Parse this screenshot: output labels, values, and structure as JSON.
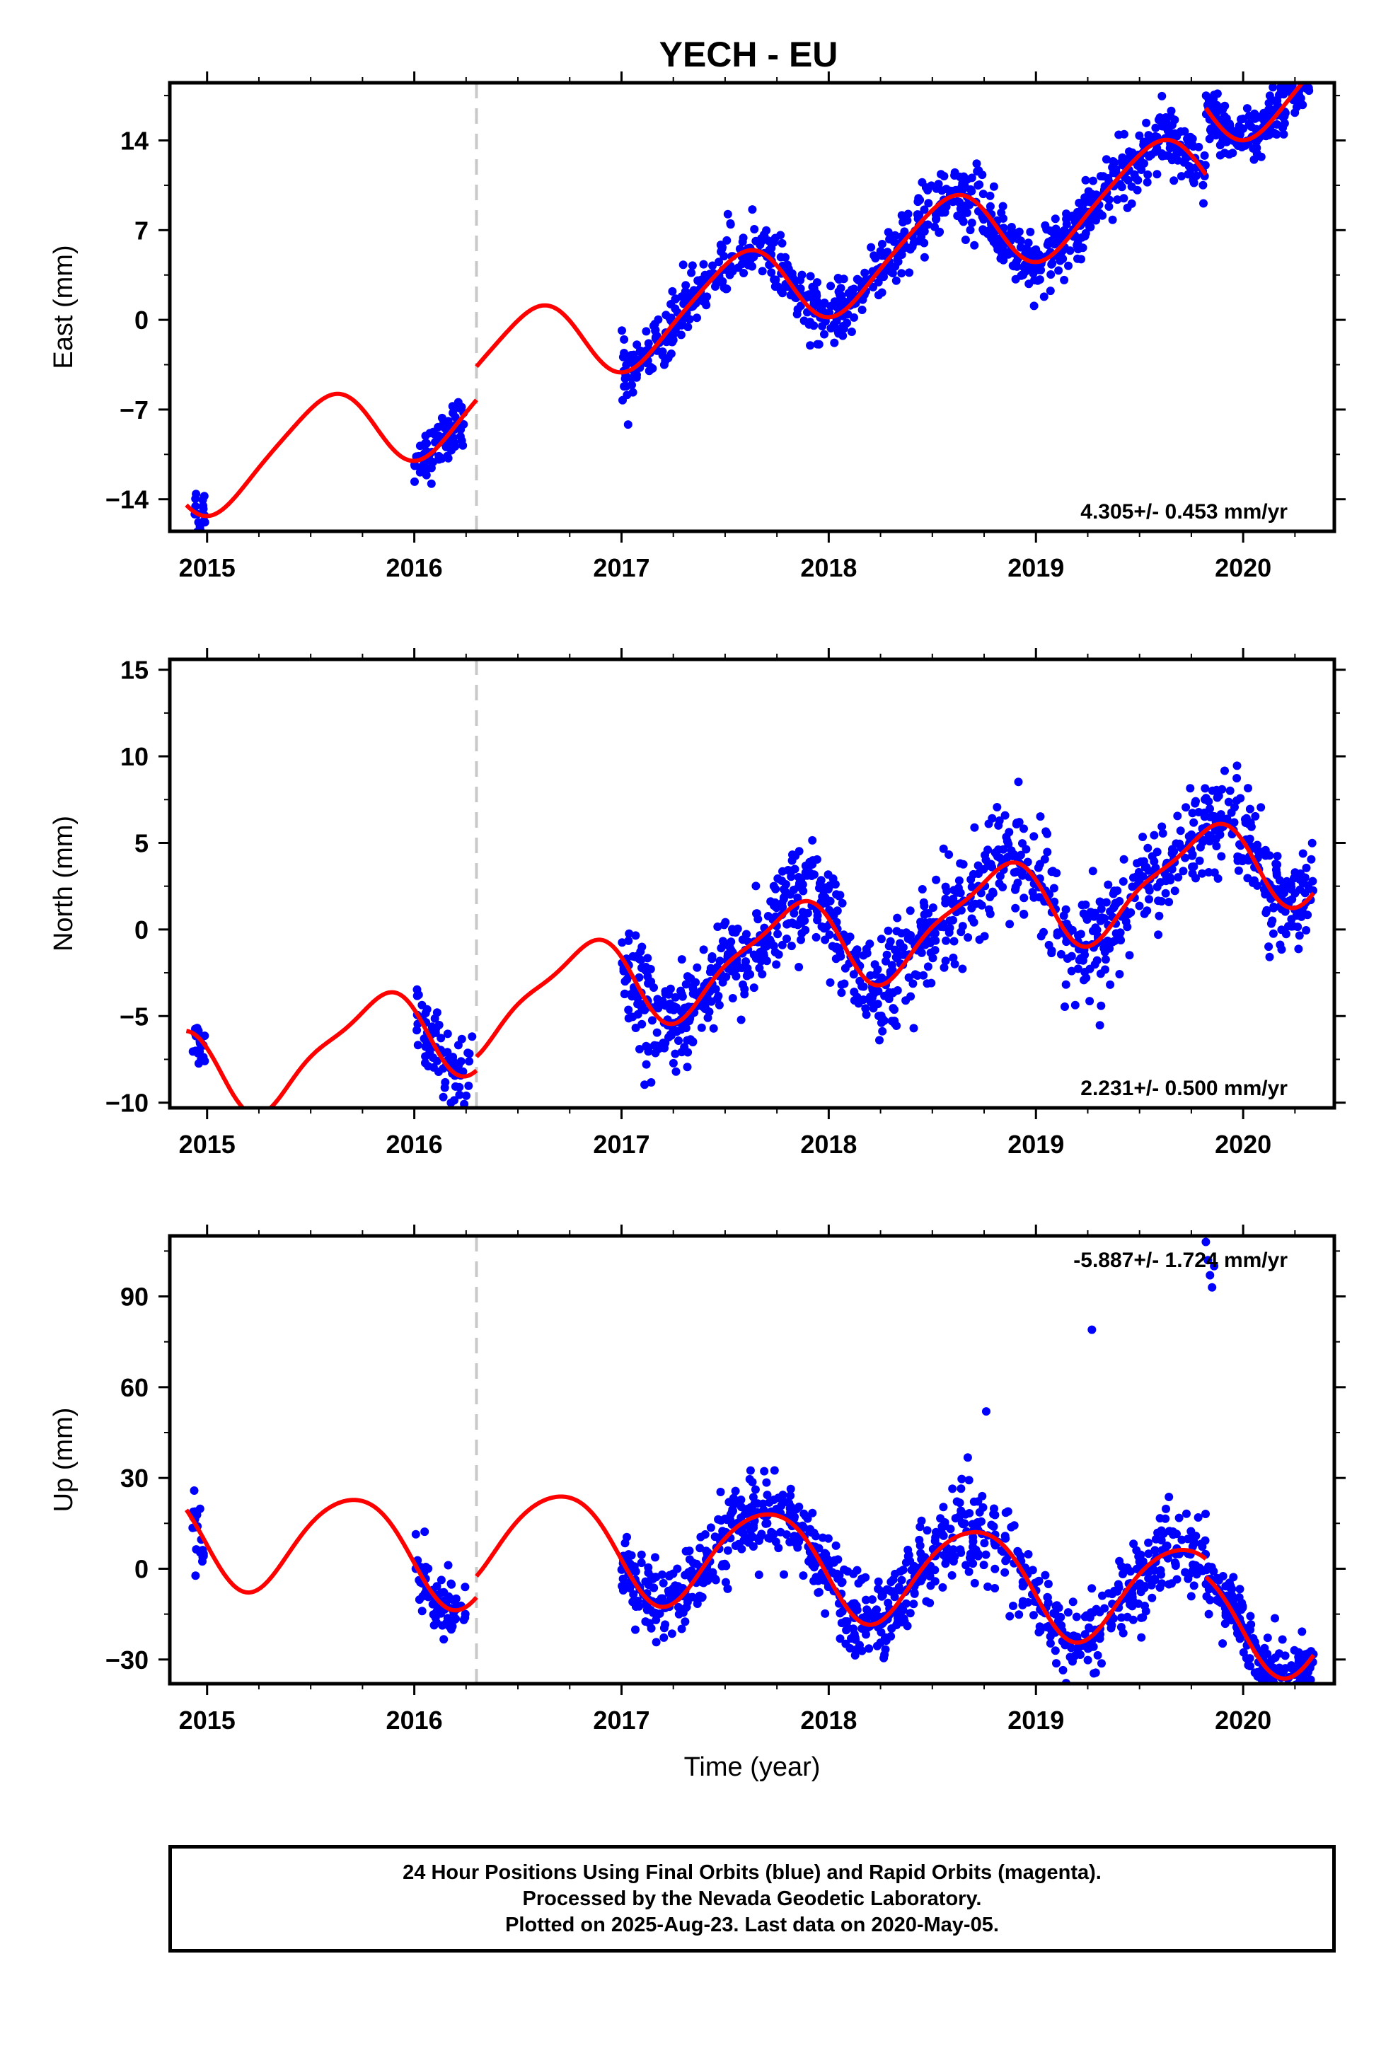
{
  "title": "YECH - EU",
  "footer": {
    "line1": "24 Hour Positions Using Final Orbits (blue) and Rapid Orbits (magenta).",
    "line2": "Processed by the Nevada Geodetic Laboratory.",
    "line3": "Plotted on 2025-Aug-23. Last data on 2020-May-05."
  },
  "colors": {
    "final_orbits": "#0000ff",
    "model_fit": "#ff0000",
    "step_line": "#c8c8c8",
    "frame": "#000000"
  },
  "chart_data": [
    {
      "type": "scatter",
      "component": "east",
      "ylabel": "East (mm)",
      "xlabel": "",
      "xlim": [
        2014.82,
        2020.44
      ],
      "ylim": [
        -16.5,
        18.5
      ],
      "yticks": [
        -14,
        -7,
        0,
        7,
        14
      ],
      "xticks": [
        2015,
        2016,
        2017,
        2018,
        2019,
        2020
      ],
      "rate_text": "4.305+/- 0.453 mm/yr",
      "step_epoch": 2016.3,
      "fit": {
        "intercept_at_2017": -3.2,
        "rate": 4.305,
        "segments": [
          {
            "from": 2014.9,
            "to": 2016.3,
            "offset": 0
          },
          {
            "from": 2016.3,
            "to": 2019.82,
            "offset": 2.6
          },
          {
            "from": 2019.82,
            "to": 2020.34,
            "offset": 7.8
          }
        ],
        "annual": [
          -1.2,
          -3.1
        ],
        "semiannual": [
          0.3,
          -0.4
        ]
      },
      "clusters": [
        {
          "from": 2014.93,
          "to": 2014.99,
          "scatter": 1.2,
          "n": 20
        },
        {
          "from": 2016.0,
          "to": 2016.24,
          "scatter": 1.0,
          "n": 80
        },
        {
          "from": 2017.0,
          "to": 2019.82,
          "scatter": 1.2,
          "n": 900
        },
        {
          "from": 2019.82,
          "to": 2020.34,
          "scatter": 1.1,
          "n": 200
        }
      ]
    },
    {
      "type": "scatter",
      "component": "north",
      "ylabel": "North (mm)",
      "xlabel": "",
      "xlim": [
        2014.82,
        2020.44
      ],
      "ylim": [
        -10.3,
        15.6
      ],
      "yticks": [
        -10,
        -5,
        0,
        5,
        10,
        15
      ],
      "xticks": [
        2015,
        2016,
        2017,
        2018,
        2019,
        2020
      ],
      "rate_text": "2.231+/- 0.500 mm/yr",
      "step_epoch": 2016.3,
      "fit": {
        "intercept_at_2017": -3.0,
        "rate": 2.231,
        "segments": [
          {
            "from": 2014.9,
            "to": 2016.3,
            "offset": -0.8
          },
          {
            "from": 2016.3,
            "to": 2020.34,
            "offset": 0
          }
        ],
        "annual": [
          -2.4,
          0.8
        ],
        "semiannual": [
          -0.4,
          0.6
        ]
      },
      "clusters": [
        {
          "from": 2014.93,
          "to": 2014.99,
          "scatter": 0.9,
          "n": 20
        },
        {
          "from": 2016.0,
          "to": 2016.28,
          "scatter": 1.0,
          "n": 80
        },
        {
          "from": 2017.0,
          "to": 2020.34,
          "scatter": 1.5,
          "n": 1100
        }
      ]
    },
    {
      "type": "scatter",
      "component": "up",
      "ylabel": "Up (mm)",
      "xlabel": "Time (year)",
      "xlim": [
        2014.82,
        2020.44
      ],
      "ylim": [
        -38,
        110
      ],
      "yticks": [
        -30,
        0,
        30,
        60,
        90
      ],
      "xticks": [
        2015,
        2016,
        2017,
        2018,
        2019,
        2020
      ],
      "rate_text": "-5.887+/- 1.724 mm/yr",
      "step_epoch": 2016.3,
      "fit": {
        "intercept_at_2017": 7.0,
        "rate": -5.887,
        "segments": [
          {
            "from": 2014.9,
            "to": 2016.3,
            "offset": -7.0
          },
          {
            "from": 2016.3,
            "to": 2019.82,
            "offset": 0
          },
          {
            "from": 2019.82,
            "to": 2020.34,
            "offset": -6.0
          }
        ],
        "annual": [
          -16.0,
          -5.0
        ],
        "semiannual": [
          -1.5,
          1.0
        ]
      },
      "clusters": [
        {
          "from": 2014.93,
          "to": 2014.99,
          "scatter": 5,
          "n": 20
        },
        {
          "from": 2016.0,
          "to": 2016.25,
          "scatter": 6,
          "n": 80
        },
        {
          "from": 2017.0,
          "to": 2019.82,
          "scatter": 7,
          "n": 900
        },
        {
          "from": 2019.82,
          "to": 2020.34,
          "scatter": 5,
          "n": 200
        }
      ],
      "outliers": [
        {
          "x": 2019.27,
          "y": 79
        },
        {
          "x": 2018.76,
          "y": 52
        },
        {
          "x": 2019.82,
          "y": 108
        },
        {
          "x": 2019.83,
          "y": 102
        },
        {
          "x": 2019.84,
          "y": 97
        },
        {
          "x": 2019.85,
          "y": 93
        },
        {
          "x": 2019.86,
          "y": 100
        }
      ]
    }
  ]
}
